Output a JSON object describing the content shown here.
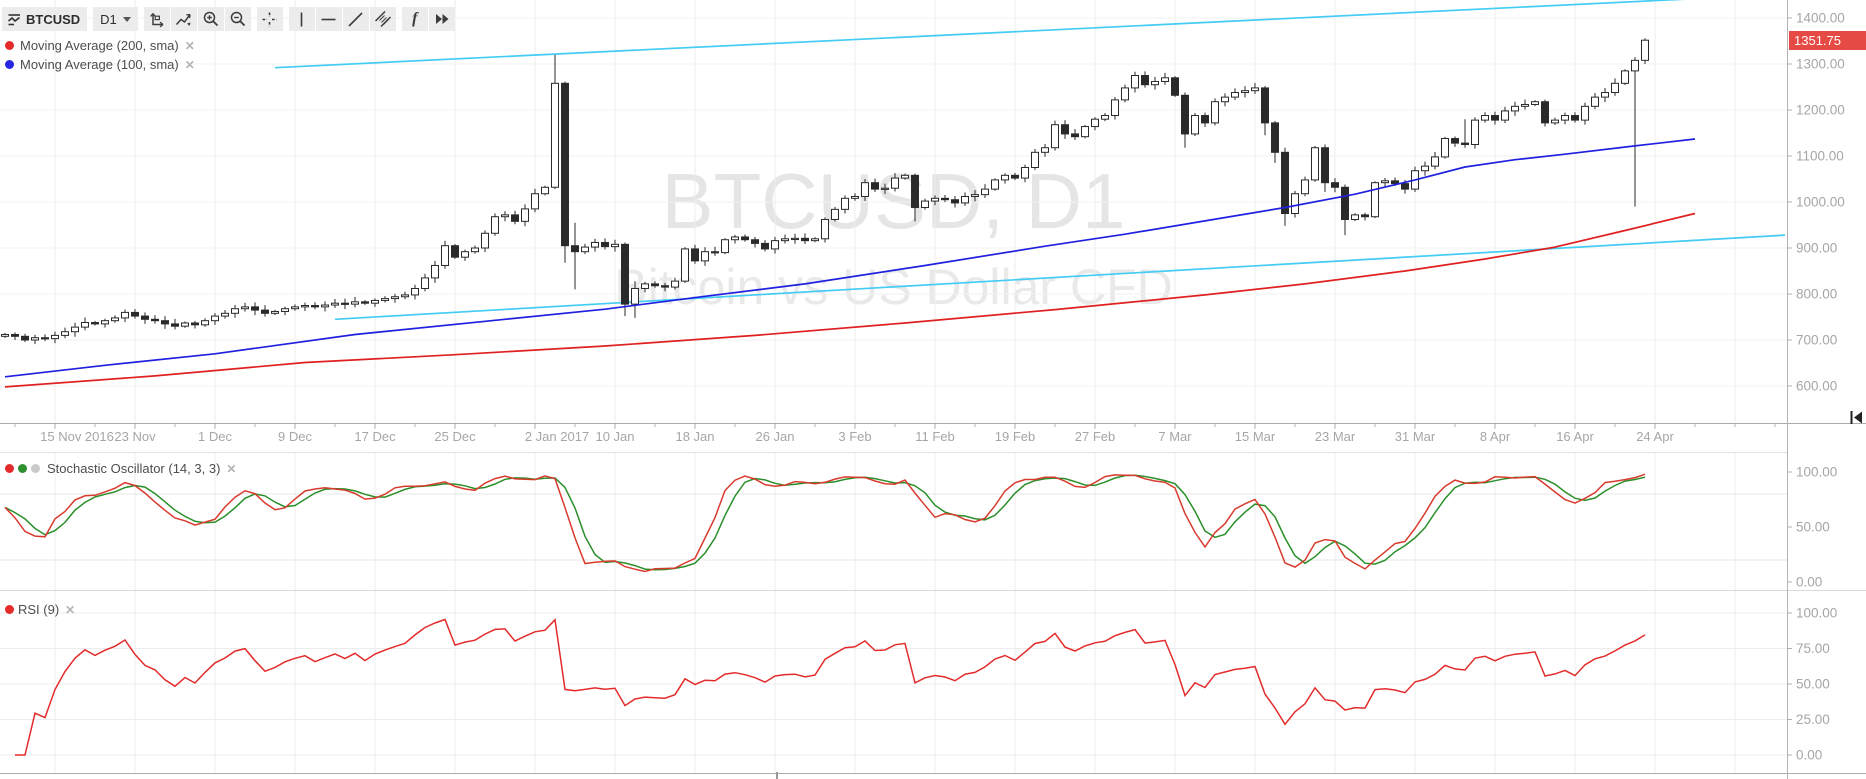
{
  "toolbar": {
    "symbol": "BTCUSD",
    "interval": "D1",
    "f_label": "f",
    "buttons": [
      "symbol-search",
      "interval-select",
      "price-scale",
      "line-chart-mode",
      "zoom-in",
      "zoom-out",
      "crosshair",
      "vertical-line-tool",
      "horizontal-line-tool",
      "trend-line-tool",
      "parallel-channel-tool",
      "indicator-function",
      "more-tools"
    ]
  },
  "icons": {
    "close": "✕"
  },
  "legend": {
    "items": [
      {
        "label": "Moving Average (200, sma)",
        "color": "#e32b2b"
      },
      {
        "label": "Moving Average (100, sma)",
        "color": "#2626e3"
      }
    ]
  },
  "watermark": {
    "line1": "BTCUSD, D1",
    "line2": "Bitcoin vs US Dollar CFD"
  },
  "price_axis": {
    "labels": [
      "1400.00",
      "1300.00",
      "1200.00",
      "1100.00",
      "1000.00",
      "900.00",
      "800.00",
      "700.00",
      "600.00"
    ],
    "values": [
      1400,
      1300,
      1200,
      1100,
      1000,
      900,
      800,
      700,
      600
    ],
    "last_price_label": "1351.75",
    "badge_color": "#e64a45",
    "text_color": "#a6a6a6"
  },
  "time_axis": {
    "labels": [
      {
        "text": "15 Nov 2016",
        "i": 5,
        "dx": 22
      },
      {
        "text": "23 Nov",
        "i": 13
      },
      {
        "text": "1 Dec",
        "i": 21
      },
      {
        "text": "9 Dec",
        "i": 29
      },
      {
        "text": "17 Dec",
        "i": 37
      },
      {
        "text": "25 Dec",
        "i": 45
      },
      {
        "text": "2 Jan 2017",
        "i": 53,
        "dx": 22
      },
      {
        "text": "10 Jan",
        "i": 61
      },
      {
        "text": "18 Jan",
        "i": 69
      },
      {
        "text": "26 Jan",
        "i": 77
      },
      {
        "text": "3 Feb",
        "i": 85
      },
      {
        "text": "11 Feb",
        "i": 93
      },
      {
        "text": "19 Feb",
        "i": 101
      },
      {
        "text": "27 Feb",
        "i": 109
      },
      {
        "text": "7 Mar",
        "i": 117
      },
      {
        "text": "15 Mar",
        "i": 125
      },
      {
        "text": "23 Mar",
        "i": 133
      },
      {
        "text": "31 Mar",
        "i": 141
      },
      {
        "text": "8 Apr",
        "i": 149
      },
      {
        "text": "16 Apr",
        "i": 157
      },
      {
        "text": "24 Apr",
        "i": 165
      }
    ]
  },
  "panes": {
    "stochastic": {
      "title": "Stochastic Oscillator (14, 3, 3)",
      "dot_colors": [
        "#e32b2b",
        "#2f8f2f",
        "#c9c9c9"
      ],
      "axis_labels": [
        {
          "text": "100.00",
          "v": 100
        },
        {
          "text": "50.00",
          "v": 50
        },
        {
          "text": "0.00",
          "v": 0
        }
      ]
    },
    "rsi": {
      "title": "RSI (9)",
      "dot_colors": [
        "#e32b2b"
      ],
      "axis_labels": [
        {
          "text": "100.00",
          "v": 100
        },
        {
          "text": "75.00",
          "v": 75
        },
        {
          "text": "50.00",
          "v": 50
        },
        {
          "text": "25.00",
          "v": 25
        },
        {
          "text": "0.00",
          "v": 0
        }
      ]
    }
  },
  "chart_data": {
    "type": "candlestick",
    "symbol": "BTCUSD",
    "interval": "D1",
    "title_watermark": "BTCUSD, D1 — Bitcoin vs US Dollar CFD",
    "start_date": "2016-11-10",
    "ylim": [
      600,
      1400
    ],
    "grid": true,
    "last_price": 1351.75,
    "first_open": 708,
    "closes": [
      712,
      708,
      700,
      705,
      703,
      710,
      718,
      728,
      738,
      735,
      742,
      748,
      760,
      752,
      745,
      742,
      735,
      730,
      737,
      733,
      742,
      752,
      758,
      768,
      772,
      765,
      758,
      762,
      768,
      772,
      775,
      772,
      776,
      780,
      778,
      783,
      780,
      786,
      790,
      794,
      798,
      812,
      835,
      862,
      905,
      880,
      892,
      900,
      932,
      968,
      972,
      958,
      985,
      1018,
      1032,
      1258,
      905,
      892,
      902,
      912,
      903,
      908,
      778,
      812,
      822,
      818,
      815,
      828,
      898,
      872,
      892,
      890,
      918,
      924,
      918,
      910,
      898,
      916,
      920,
      921,
      916,
      920,
      962,
      984,
      1008,
      1012,
      1042,
      1028,
      1030,
      1052,
      1058,
      988,
      1002,
      1008,
      1005,
      998,
      1012,
      1016,
      1028,
      1048,
      1058,
      1052,
      1075,
      1108,
      1118,
      1168,
      1148,
      1142,
      1164,
      1180,
      1188,
      1222,
      1248,
      1275,
      1255,
      1262,
      1270,
      1232,
      1148,
      1188,
      1172,
      1218,
      1228,
      1238,
      1242,
      1248,
      1172,
      1108,
      975,
      1018,
      1048,
      1118,
      1042,
      1032,
      962,
      972,
      968,
      1042,
      1046,
      1040,
      1028,
      1068,
      1078,
      1098,
      1138,
      1128,
      1125,
      1178,
      1188,
      1178,
      1198,
      1208,
      1212,
      1218,
      1172,
      1178,
      1188,
      1178,
      1208,
      1228,
      1238,
      1258,
      1285,
      1308,
      1351.75
    ],
    "special_candles": {
      "55": [
        1032,
        1320,
        1028,
        1258
      ],
      "56": [
        1258,
        1262,
        868,
        905
      ],
      "57": [
        905,
        955,
        810,
        892
      ],
      "62": [
        908,
        912,
        752,
        778
      ],
      "63": [
        778,
        828,
        748,
        812
      ],
      "68": [
        828,
        902,
        824,
        898
      ],
      "91": [
        1058,
        1062,
        958,
        988
      ],
      "118": [
        1232,
        1238,
        1118,
        1148
      ],
      "126": [
        1248,
        1252,
        1145,
        1172
      ],
      "127": [
        1172,
        1176,
        1085,
        1108
      ],
      "128": [
        1108,
        1118,
        948,
        975
      ],
      "131": [
        1048,
        1122,
        1044,
        1118
      ],
      "132": [
        1118,
        1125,
        1022,
        1042
      ],
      "134": [
        1032,
        1038,
        928,
        962
      ],
      "137": [
        968,
        1045,
        965,
        1042
      ],
      "146": [
        1128,
        1180,
        1118,
        1125
      ],
      "163": [
        1285,
        1315,
        990,
        1308
      ],
      "164": [
        1308,
        1356,
        1300,
        1351.75
      ]
    },
    "overlays": {
      "ma200": {
        "name": "Moving Average (200, sma)",
        "color": "#e02020",
        "anchors": [
          [
            0,
            598
          ],
          [
            15,
            622
          ],
          [
            30,
            651
          ],
          [
            45,
            668
          ],
          [
            60,
            687
          ],
          [
            75,
            710
          ],
          [
            90,
            737
          ],
          [
            105,
            766
          ],
          [
            120,
            798
          ],
          [
            130,
            822
          ],
          [
            140,
            850
          ],
          [
            148,
            876
          ],
          [
            155,
            902
          ],
          [
            162,
            938
          ],
          [
            169,
            975
          ]
        ]
      },
      "ma100": {
        "name": "Moving Average (100, sma)",
        "color": "#2020e0",
        "anchors": [
          [
            0,
            620
          ],
          [
            10,
            645
          ],
          [
            21,
            670
          ],
          [
            35,
            712
          ],
          [
            50,
            745
          ],
          [
            60,
            767
          ],
          [
            70,
            795
          ],
          [
            80,
            822
          ],
          [
            92,
            862
          ],
          [
            104,
            904
          ],
          [
            112,
            930
          ],
          [
            120,
            959
          ],
          [
            128,
            988
          ],
          [
            135,
            1017
          ],
          [
            141,
            1048
          ],
          [
            146,
            1076
          ],
          [
            151,
            1092
          ],
          [
            156,
            1104
          ],
          [
            163,
            1122
          ],
          [
            169,
            1137
          ]
        ]
      },
      "channel": {
        "color": "#44ccf5",
        "upper": [
          [
            27,
            1292
          ],
          [
            169,
            1442
          ]
        ],
        "lower": [
          [
            33,
            745
          ],
          [
            178,
            928
          ]
        ]
      }
    },
    "indicators": {
      "stochastic": {
        "k_period": 14,
        "k_smooth": 3,
        "d_period": 3,
        "range": [
          0,
          100
        ],
        "levels": [
          80,
          20
        ],
        "k_color": "#d93a2e",
        "d_color": "#2a8f2a"
      },
      "rsi": {
        "period": 9,
        "range": [
          0,
          100
        ],
        "levels": [
          100,
          75,
          50,
          25,
          0
        ],
        "color": "#e32b2b"
      }
    }
  }
}
